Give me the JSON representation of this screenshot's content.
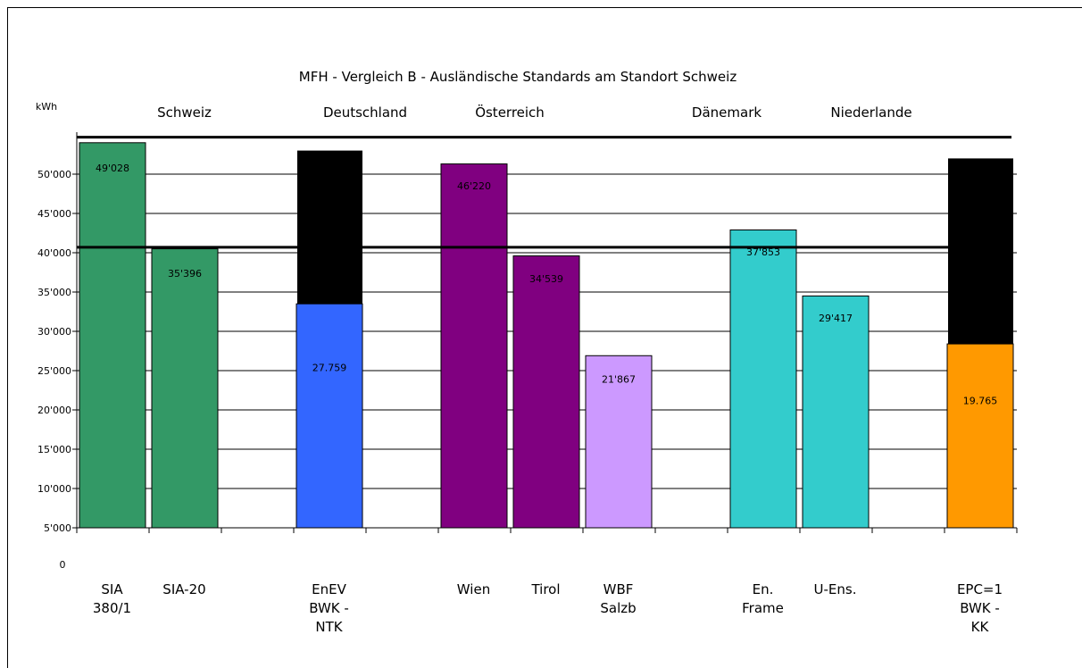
{
  "chart_data": {
    "type": "bar",
    "title": "MFH - Vergleich B - Ausländische Standards am Standort Schweiz",
    "ylabel": "kWh",
    "ylim": [
      0,
      55000
    ],
    "y_ticks": [
      "5'000",
      "10'000",
      "15'000",
      "20'000",
      "25'000",
      "30'000",
      "35'000",
      "40'000",
      "45'000",
      "50'000"
    ],
    "y_zero_label": "0",
    "grid": true,
    "countries": [
      {
        "label": "Schweiz",
        "slot": 1.0
      },
      {
        "label": "Deutschland",
        "slot": 3.5
      },
      {
        "label": "Österreich",
        "slot": 5.5
      },
      {
        "label": "Dänemark",
        "slot": 8.5
      },
      {
        "label": "Niederlande",
        "slot": 10.5
      }
    ],
    "categories": [
      {
        "lines": [
          "SIA",
          "380/1"
        ],
        "slot": 0
      },
      {
        "lines": [
          "SIA-20"
        ],
        "slot": 1
      },
      {
        "lines": [
          "EnEV",
          "BWK -",
          "NTK"
        ],
        "slot": 3
      },
      {
        "lines": [
          "Wien"
        ],
        "slot": 5
      },
      {
        "lines": [
          "Tirol"
        ],
        "slot": 6
      },
      {
        "lines": [
          "WBF",
          "Salzb"
        ],
        "slot": 7
      },
      {
        "lines": [
          "En.",
          "Frame"
        ],
        "slot": 9
      },
      {
        "lines": [
          "U-Ens."
        ],
        "slot": 10
      },
      {
        "lines": [
          "EPC=1",
          "BWK -",
          "KK"
        ],
        "slot": 12
      }
    ],
    "bars": [
      {
        "slot": 0,
        "value": 54000,
        "color": "#339966",
        "label": "49'028",
        "label_value": 50800
      },
      {
        "slot": 1,
        "value": 40500,
        "color": "#339966",
        "label": "35'396",
        "label_value": 37400
      },
      {
        "slot": 3,
        "value": 33500,
        "color": "#3366FF",
        "label": "27.759",
        "label_value": 25400,
        "overlay": {
          "from": 33500,
          "to": 53000,
          "color": "#000000"
        }
      },
      {
        "slot": 5,
        "value": 51300,
        "color": "#800080",
        "label": "46'220",
        "label_value": 48500
      },
      {
        "slot": 6,
        "value": 39600,
        "color": "#800080",
        "label": "34'539",
        "label_value": 36700
      },
      {
        "slot": 7,
        "value": 26900,
        "color": "#CC99FF",
        "label": "21'867",
        "label_value": 23900
      },
      {
        "slot": 9,
        "value": 42900,
        "color": "#33CCCC",
        "label": "37'853",
        "label_value": 40100
      },
      {
        "slot": 10,
        "value": 34500,
        "color": "#33CCCC",
        "label": "29'417",
        "label_value": 31700
      },
      {
        "slot": 12,
        "value": 28400,
        "color": "#FF9900",
        "label": "19.765",
        "label_value": 21200,
        "overlay": {
          "from": 28400,
          "to": 52000,
          "color": "#000000"
        }
      }
    ],
    "reference_lines": [
      54700,
      40700
    ]
  }
}
